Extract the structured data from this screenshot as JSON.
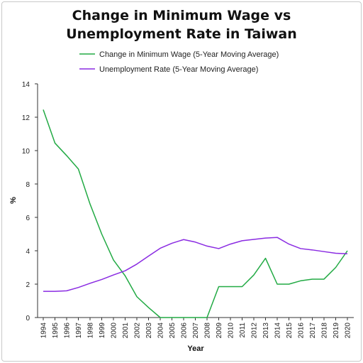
{
  "chart_data": {
    "type": "line",
    "title_lines": [
      "Change in Minimum Wage vs",
      "Unemployment Rate in Taiwan"
    ],
    "xlabel": "Year",
    "ylabel": "%",
    "ylim": [
      0,
      14
    ],
    "yticks": [
      0,
      2,
      4,
      6,
      8,
      10,
      12,
      14
    ],
    "grid": false,
    "legend_position": "top",
    "x": [
      "1994",
      "1995",
      "1996",
      "1997",
      "1998",
      "1999",
      "2000",
      "2001",
      "2002",
      "2003",
      "2004",
      "2005",
      "2006",
      "2007",
      "2008",
      "2009",
      "2010",
      "2011",
      "2012",
      "2013",
      "2014",
      "2015",
      "2016",
      "2017",
      "2018",
      "2019",
      "2020"
    ],
    "series": [
      {
        "name": "Change in Minimum Wage (5-Year Moving Average)",
        "color": "#22aa44",
        "values": [
          12.45,
          10.45,
          9.7,
          8.9,
          6.8,
          5.0,
          3.45,
          2.5,
          1.25,
          0.6,
          0.0,
          0.0,
          0.0,
          0.0,
          0.0,
          1.85,
          1.85,
          1.85,
          2.55,
          3.55,
          2.0,
          2.0,
          2.2,
          2.3,
          2.3,
          3.0,
          4.0
        ]
      },
      {
        "name": "Unemployment Rate (5-Year Moving Average)",
        "color": "#8a2be2",
        "values": [
          1.57,
          1.57,
          1.6,
          1.8,
          2.05,
          2.28,
          2.55,
          2.8,
          3.2,
          3.68,
          4.15,
          4.45,
          4.67,
          4.52,
          4.28,
          4.13,
          4.4,
          4.6,
          4.68,
          4.76,
          4.8,
          4.4,
          4.13,
          4.05,
          3.95,
          3.85,
          3.82
        ]
      }
    ]
  }
}
